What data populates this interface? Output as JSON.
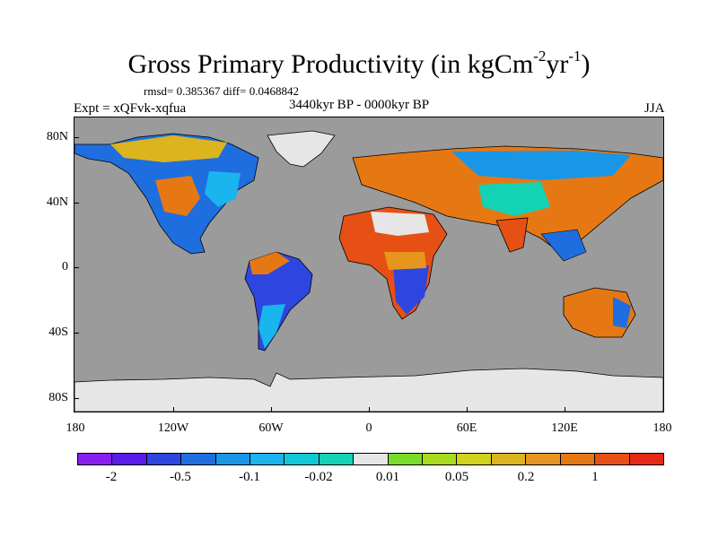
{
  "title": {
    "text": "Gross Primary Productivity (in kgCm",
    "sup1": "-2",
    "mid": "yr",
    "sup2": "-1",
    "close": ")"
  },
  "stats": "rmsd= 0.385367 diff= 0.0468842",
  "expt": "Expt = xQFvk-xqfua",
  "period": "3440kyr BP - 0000kyr BP",
  "season": "JJA",
  "lat_labels": [
    "80N",
    "40N",
    "0",
    "40S",
    "80S"
  ],
  "lon_labels": [
    "180",
    "120W",
    "60W",
    "0",
    "60E",
    "120E",
    "180"
  ],
  "colorbar": {
    "colors": [
      "#8a1ef0",
      "#5a1ae8",
      "#2e46e0",
      "#1f6ee0",
      "#1a96e6",
      "#1ab4ee",
      "#10c8d8",
      "#14d2b4",
      "#e6e6e6",
      "#78dc28",
      "#aadc1e",
      "#d2d21e",
      "#dcb41e",
      "#e6961e",
      "#e67814",
      "#e65014",
      "#e62814"
    ],
    "labels": [
      "-2",
      "-0.5",
      "-0.1",
      "-0.02",
      "0.01",
      "0.05",
      "0.2",
      "1"
    ]
  },
  "colors": {
    "ocean": "#9b9b9b",
    "antarctica": "#e6e6e6",
    "coastline": "#000000"
  }
}
